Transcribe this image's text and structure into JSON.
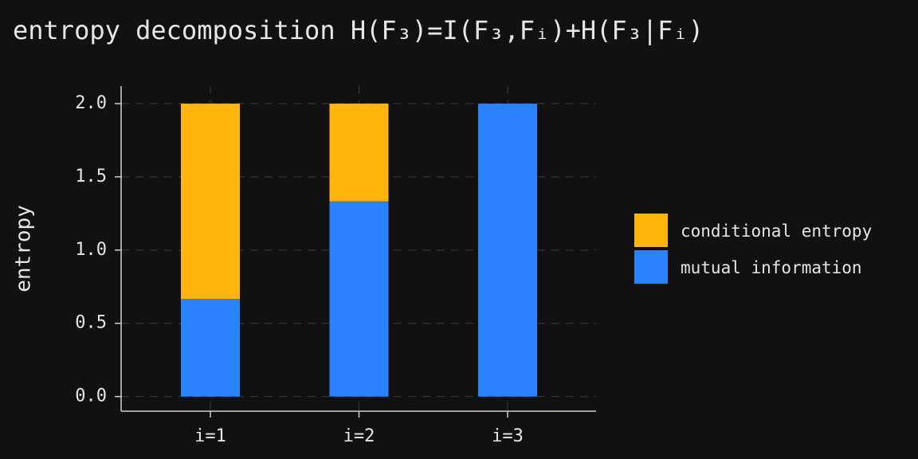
{
  "chart_data": {
    "type": "stacked_bar",
    "title": "entropy decomposition H(F₃)=I(F₃,Fᵢ)+H(F₃|Fᵢ)",
    "y_label": "entropy",
    "categories": [
      "i=1",
      "i=2",
      "i=3"
    ],
    "series": [
      {
        "name": "mutual information",
        "color": "#2a82ff",
        "values": [
          0.667,
          1.333,
          2.0
        ]
      },
      {
        "name": "conditional entropy",
        "color": "#ffb50c",
        "values": [
          1.333,
          0.667,
          0.0
        ]
      }
    ],
    "ylim": [
      -0.1,
      2.12
    ],
    "yticks": [
      {
        "value": 0,
        "label": "0.0"
      },
      {
        "value": 0.5,
        "label": "0.5"
      },
      {
        "value": 1,
        "label": "1.0"
      },
      {
        "value": 1.5,
        "label": "1.5"
      },
      {
        "value": 2,
        "label": "2.0"
      }
    ],
    "grid": true,
    "legend": "right"
  }
}
